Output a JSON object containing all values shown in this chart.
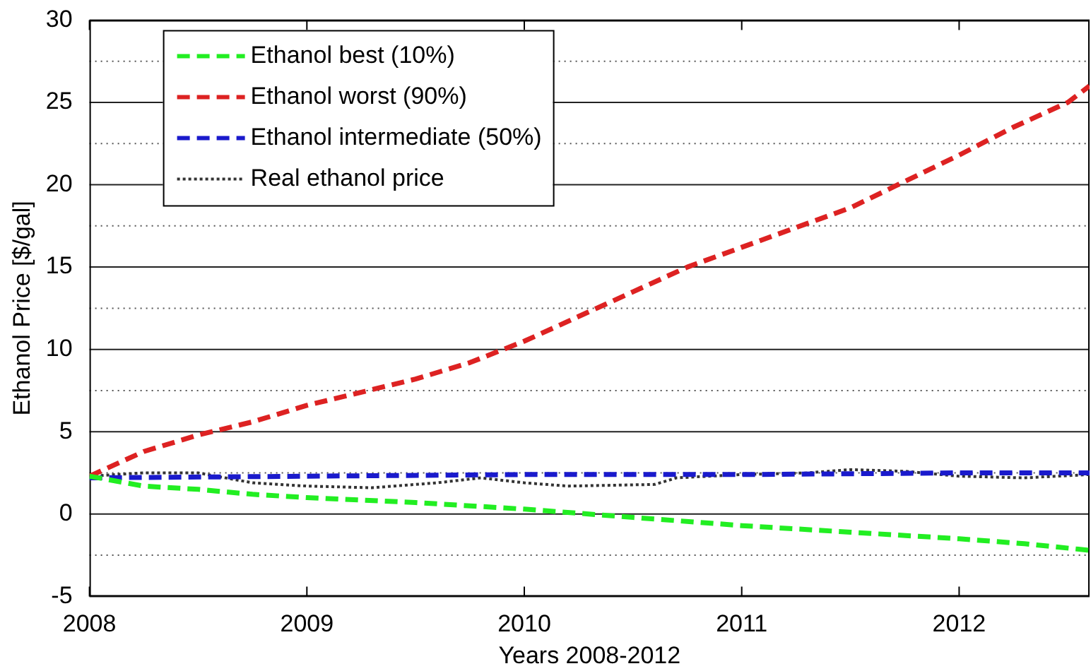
{
  "chart_data": {
    "type": "line",
    "xlabel": "Years 2008-2012",
    "ylabel": "Ethanol Price [$/gal]",
    "xlim": [
      2008,
      2012.6
    ],
    "xticks": [
      2008,
      2009,
      2010,
      2011,
      2012
    ],
    "ylim": [
      -5,
      30
    ],
    "yticks": [
      -5,
      {
        "value": -2.5,
        "label": null
      },
      0,
      {
        "value": 2.5,
        "label": null
      },
      5,
      {
        "value": 7.5,
        "label": null
      },
      10,
      {
        "value": 12.5,
        "label": null
      },
      15,
      {
        "value": 17.5,
        "label": null
      },
      20,
      {
        "value": 22.5,
        "label": null
      },
      25,
      {
        "value": 27.5,
        "label": null
      },
      30
    ],
    "grid": "y",
    "legend": "top left",
    "marker": "none",
    "series": [
      {
        "name": "Ethanol best (10%)",
        "color": "#22ee22",
        "line_style": "dashed",
        "x": [
          2008,
          2008.25,
          2008.5,
          2008.75,
          2009,
          2009.5,
          2010,
          2010.5,
          2011,
          2011.5,
          2012,
          2012.3,
          2012.6
        ],
        "values": [
          2.3,
          1.7,
          1.5,
          1.2,
          1.0,
          0.7,
          0.3,
          -0.2,
          -0.7,
          -1.1,
          -1.5,
          -1.8,
          -2.2
        ]
      },
      {
        "name": "Ethanol worst (90%)",
        "color": "#dd2222",
        "line_style": "dashed",
        "x": [
          2008,
          2008.25,
          2008.5,
          2008.75,
          2009,
          2009.25,
          2009.5,
          2009.75,
          2010,
          2010.25,
          2010.5,
          2010.75,
          2011,
          2011.25,
          2011.5,
          2011.75,
          2012,
          2012.25,
          2012.5,
          2012.6
        ],
        "values": [
          2.3,
          3.8,
          4.8,
          5.6,
          6.6,
          7.4,
          8.2,
          9.2,
          10.5,
          12.0,
          13.5,
          15.0,
          16.2,
          17.4,
          18.6,
          20.2,
          21.8,
          23.5,
          25.0,
          26.0
        ]
      },
      {
        "name": "Ethanol intermediate (50%)",
        "color": "#1a1acc",
        "line_style": "dashed",
        "x": [
          2008,
          2009,
          2010,
          2011,
          2012,
          2012.6
        ],
        "values": [
          2.2,
          2.3,
          2.4,
          2.4,
          2.5,
          2.5
        ]
      },
      {
        "name": "Real ethanol price",
        "color": "#333333",
        "line_style": "dotted",
        "x": [
          2008,
          2008.25,
          2008.5,
          2008.75,
          2009,
          2009.3,
          2009.6,
          2009.8,
          2010,
          2010.2,
          2010.6,
          2010.7,
          2011,
          2011.3,
          2011.5,
          2011.75,
          2012,
          2012.3,
          2012.6
        ],
        "values": [
          2.3,
          2.5,
          2.5,
          1.9,
          1.7,
          1.6,
          1.9,
          2.2,
          1.9,
          1.7,
          1.8,
          2.2,
          2.4,
          2.5,
          2.7,
          2.6,
          2.3,
          2.2,
          2.4
        ]
      }
    ]
  }
}
